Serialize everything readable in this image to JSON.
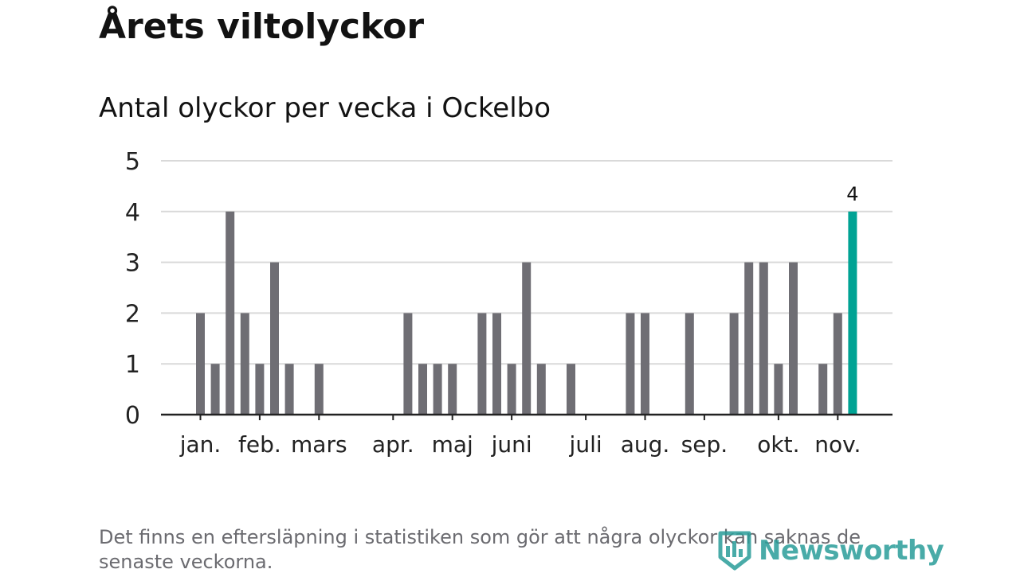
{
  "title": "Årets viltolyckor",
  "subtitle": "Antal olyckor per vecka i Ockelbo",
  "footnote": "Det finns en eftersläpning i statistiken som gör att några olyckor kan saknas de senaste veckorna.",
  "brand": {
    "name": "Newsworthy",
    "icon": "newsworthy-logo-icon",
    "color": "#2a9d99"
  },
  "colors": {
    "bar": "#6f6e74",
    "highlight": "#00a394",
    "grid": "#d9d9d9",
    "axis": "#222222"
  },
  "chart_data": {
    "type": "bar",
    "ylim": [
      0,
      5
    ],
    "yticks": [
      0,
      1,
      2,
      3,
      4,
      5
    ],
    "grid": true,
    "x_tick_labels": [
      "jan.",
      "feb.",
      "mars",
      "apr.",
      "maj",
      "juni",
      "juli",
      "aug.",
      "sep.",
      "okt.",
      "nov."
    ],
    "x_tick_weeks": [
      1,
      5,
      9,
      14,
      18,
      22,
      27,
      31,
      35,
      40,
      44
    ],
    "weeks": [
      1,
      2,
      3,
      4,
      5,
      6,
      7,
      8,
      9,
      10,
      11,
      12,
      13,
      14,
      15,
      16,
      17,
      18,
      19,
      20,
      21,
      22,
      23,
      24,
      25,
      26,
      27,
      28,
      29,
      30,
      31,
      32,
      33,
      34,
      35,
      36,
      37,
      38,
      39,
      40,
      41,
      42,
      43,
      44,
      45,
      46
    ],
    "values": [
      2,
      1,
      4,
      2,
      1,
      3,
      1,
      0,
      1,
      0,
      0,
      0,
      0,
      0,
      2,
      1,
      1,
      1,
      0,
      2,
      2,
      1,
      3,
      1,
      0,
      1,
      0,
      0,
      0,
      2,
      2,
      0,
      0,
      2,
      0,
      0,
      2,
      3,
      3,
      1,
      3,
      0,
      1,
      2,
      4,
      0
    ],
    "highlight_index": 44,
    "data_label": "4"
  }
}
